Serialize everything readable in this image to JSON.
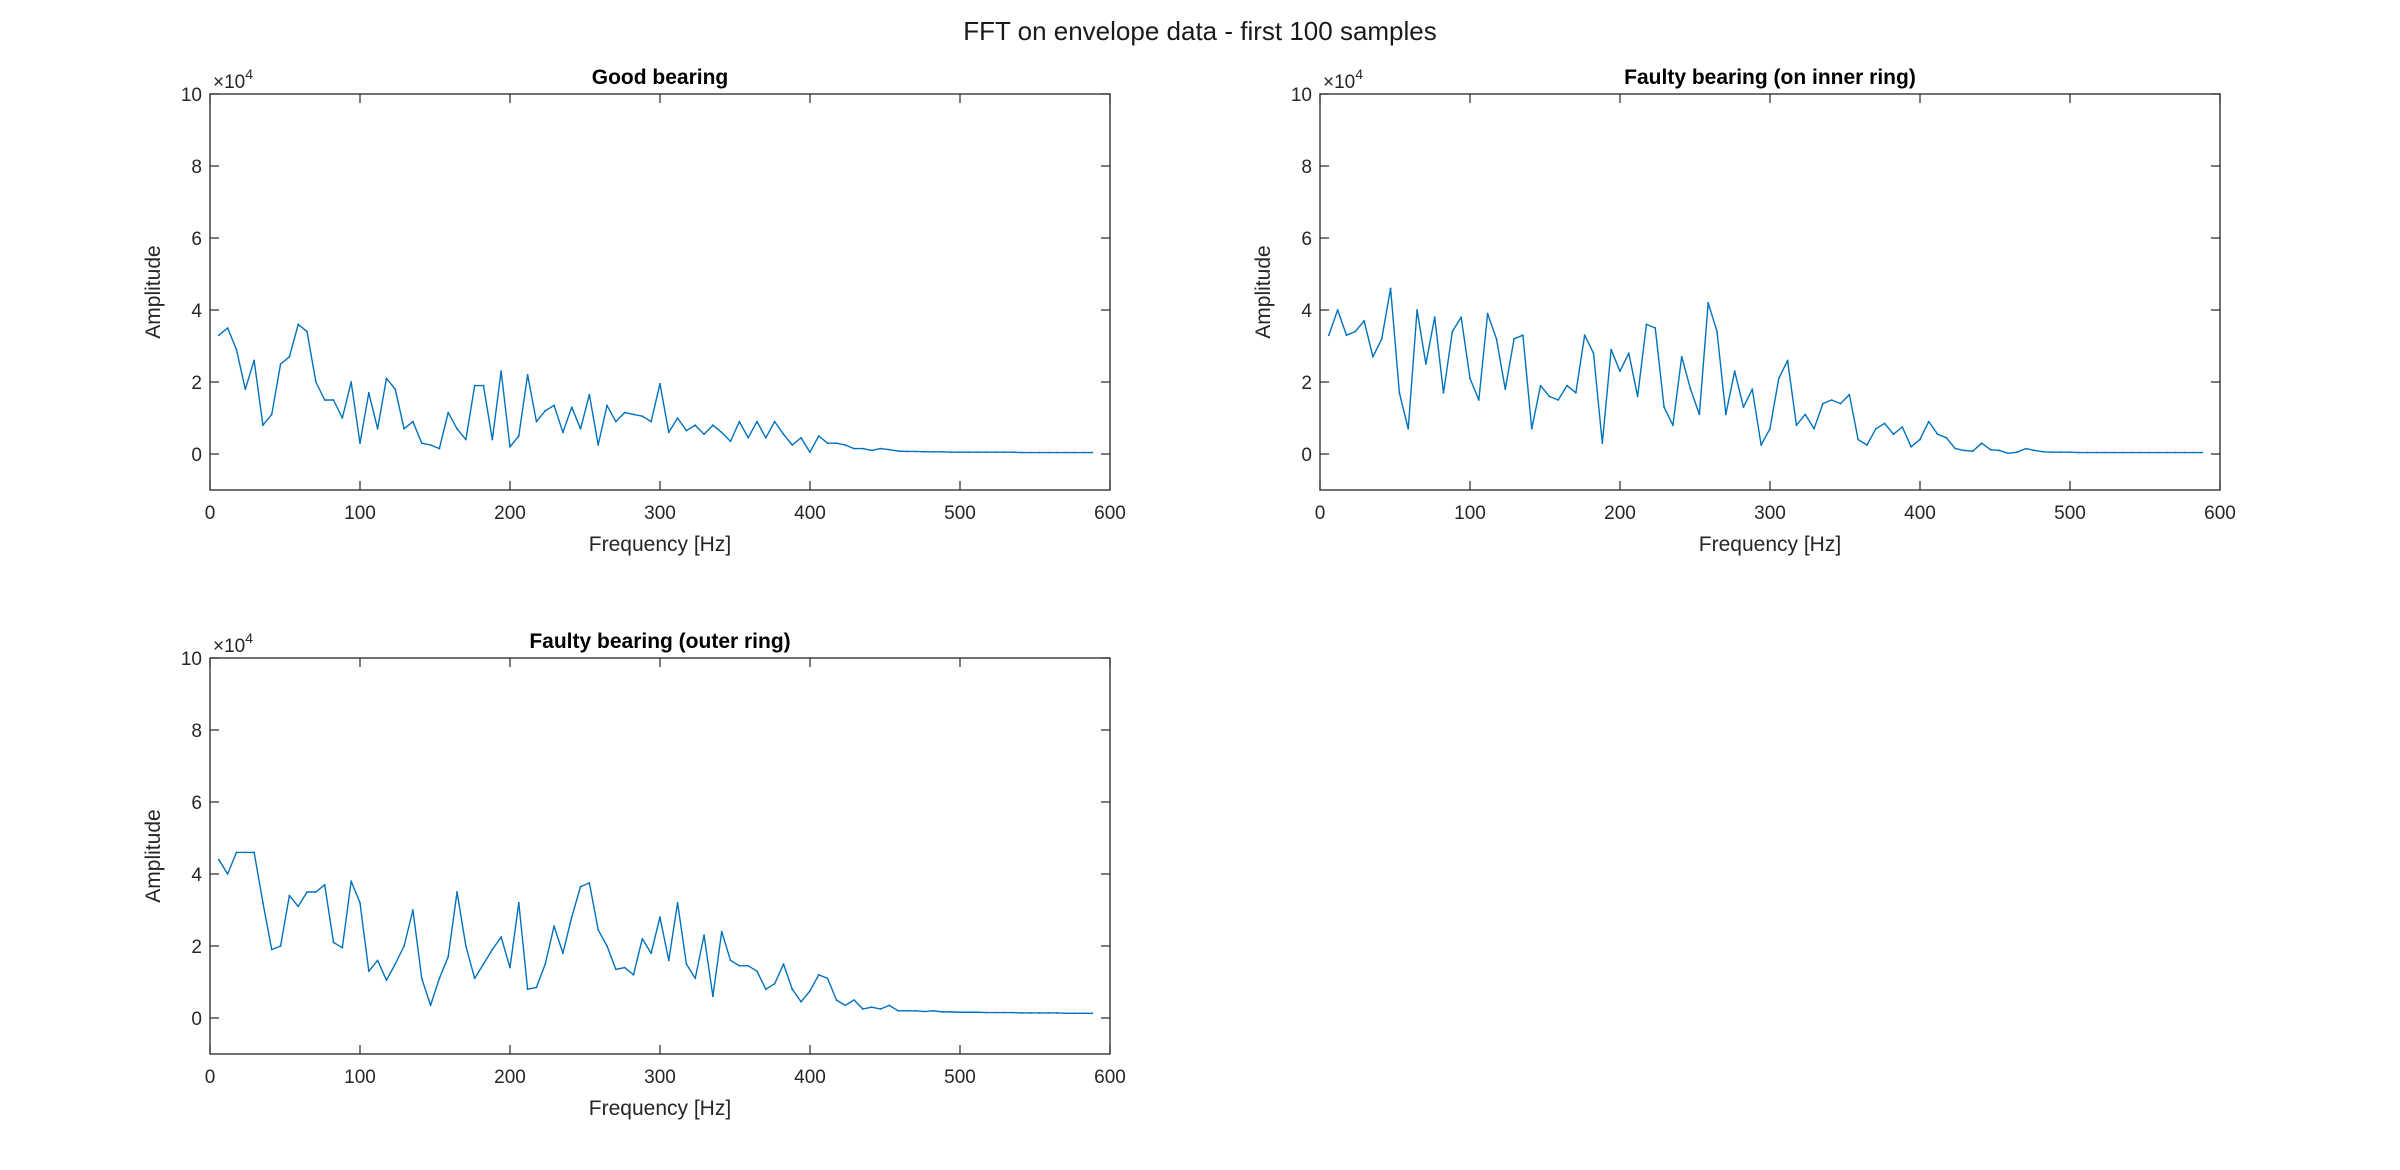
{
  "figure": {
    "suptitle": "FFT on envelope data - first 100 samples"
  },
  "style": {
    "line_color": "#0072BD",
    "axis_color": "#262626",
    "background": "#ffffff"
  },
  "chart_data": [
    {
      "type": "line",
      "title": "Good bearing",
      "xlabel": "Frequency [Hz]",
      "ylabel": "Amplitude",
      "exponent_label": "×10",
      "exponent": "4",
      "xlim": [
        0,
        600
      ],
      "ylim": [
        -1,
        10
      ],
      "xticks": [
        "0",
        "100",
        "200",
        "300",
        "400",
        "500",
        "600"
      ],
      "yticks": [
        "0",
        "2",
        "4",
        "6",
        "8",
        "10"
      ],
      "grid": false,
      "x": [
        5.88,
        11.76,
        17.64,
        23.53,
        29.41,
        35.29,
        41.17,
        47.05,
        52.93,
        58.82,
        64.7,
        70.58,
        76.46,
        82.34,
        88.22,
        94.11,
        99.99,
        105.87,
        111.75,
        117.63,
        123.51,
        129.4,
        135.28,
        141.16,
        147.04,
        152.92,
        158.8,
        164.69,
        170.57,
        176.45,
        182.33,
        188.21,
        194.09,
        199.98,
        205.86,
        211.74,
        217.62,
        223.5,
        229.38,
        235.27,
        241.15,
        247.03,
        252.91,
        258.79,
        264.67,
        270.56,
        276.44,
        282.32,
        288.2,
        294.08,
        299.96,
        305.85,
        311.73,
        317.61,
        323.49,
        329.37,
        335.25,
        341.14,
        347.02,
        352.9,
        358.78,
        364.66,
        370.54,
        376.43,
        382.31,
        388.19,
        394.07,
        399.95,
        405.83,
        411.72,
        417.6,
        423.48,
        429.36,
        435.24,
        441.12,
        447.01,
        452.89,
        458.77,
        464.65,
        470.53,
        476.41,
        482.3,
        488.18,
        494.06,
        499.94,
        505.82,
        511.7,
        517.59,
        523.47,
        529.35,
        535.23,
        541.11,
        546.99,
        552.88,
        558.76,
        564.64,
        570.52,
        576.4,
        582.28,
        588.17
      ],
      "series": [
        {
          "values": [
            3.3,
            3.5,
            2.9,
            1.8,
            2.6,
            0.8,
            1.1,
            2.5,
            2.7,
            3.6,
            3.4,
            2.0,
            1.5,
            1.5,
            1.0,
            2.0,
            0.3,
            1.7,
            0.7,
            2.1,
            1.8,
            0.7,
            0.9,
            0.3,
            0.25,
            0.15,
            1.15,
            0.7,
            0.4,
            1.9,
            1.9,
            0.4,
            2.3,
            0.2,
            0.5,
            2.2,
            0.9,
            1.2,
            1.35,
            0.6,
            1.3,
            0.7,
            1.65,
            0.25,
            1.35,
            0.9,
            1.15,
            1.1,
            1.05,
            0.9,
            1.95,
            0.6,
            1.0,
            0.65,
            0.8,
            0.55,
            0.8,
            0.6,
            0.35,
            0.9,
            0.45,
            0.9,
            0.45,
            0.9,
            0.55,
            0.25,
            0.45,
            0.05,
            0.5,
            0.3,
            0.3,
            0.25,
            0.15,
            0.15,
            0.1,
            0.15,
            0.12,
            0.08,
            0.07,
            0.07,
            0.06,
            0.06,
            0.06,
            0.05,
            0.05,
            0.05,
            0.05,
            0.05,
            0.05,
            0.05,
            0.05,
            0.04,
            0.04,
            0.04,
            0.04,
            0.04,
            0.04,
            0.04,
            0.04,
            0.04
          ]
        }
      ]
    },
    {
      "type": "line",
      "title": "Faulty bearing (on inner ring)",
      "xlabel": "Frequency [Hz]",
      "ylabel": "Amplitude",
      "exponent_label": "×10",
      "exponent": "4",
      "xlim": [
        0,
        600
      ],
      "ylim": [
        -1,
        10
      ],
      "xticks": [
        "0",
        "100",
        "200",
        "300",
        "400",
        "500",
        "600"
      ],
      "yticks": [
        "0",
        "2",
        "4",
        "6",
        "8",
        "10"
      ],
      "grid": false,
      "x": [
        5.88,
        11.76,
        17.64,
        23.53,
        29.41,
        35.29,
        41.17,
        47.05,
        52.93,
        58.82,
        64.7,
        70.58,
        76.46,
        82.34,
        88.22,
        94.11,
        99.99,
        105.87,
        111.75,
        117.63,
        123.51,
        129.4,
        135.28,
        141.16,
        147.04,
        152.92,
        158.8,
        164.69,
        170.57,
        176.45,
        182.33,
        188.21,
        194.09,
        199.98,
        205.86,
        211.74,
        217.62,
        223.5,
        229.38,
        235.27,
        241.15,
        247.03,
        252.91,
        258.79,
        264.67,
        270.56,
        276.44,
        282.32,
        288.2,
        294.08,
        299.96,
        305.85,
        311.73,
        317.61,
        323.49,
        329.37,
        335.25,
        341.14,
        347.02,
        352.9,
        358.78,
        364.66,
        370.54,
        376.43,
        382.31,
        388.19,
        394.07,
        399.95,
        405.83,
        411.72,
        417.6,
        423.48,
        429.36,
        435.24,
        441.12,
        447.01,
        452.89,
        458.77,
        464.65,
        470.53,
        476.41,
        482.3,
        488.18,
        494.06,
        499.94,
        505.82,
        511.7,
        517.59,
        523.47,
        529.35,
        535.23,
        541.11,
        546.99,
        552.88,
        558.76,
        564.64,
        570.52,
        576.4,
        582.28,
        588.17
      ],
      "series": [
        {
          "values": [
            3.3,
            4.0,
            3.3,
            3.4,
            3.7,
            2.7,
            3.2,
            4.6,
            1.7,
            0.7,
            4.0,
            2.5,
            3.8,
            1.7,
            3.4,
            3.8,
            2.1,
            1.5,
            3.9,
            3.2,
            1.8,
            3.2,
            3.3,
            0.7,
            1.9,
            1.6,
            1.5,
            1.9,
            1.7,
            3.3,
            2.8,
            0.3,
            2.9,
            2.3,
            2.8,
            1.6,
            3.6,
            3.5,
            1.3,
            0.8,
            2.7,
            1.8,
            1.1,
            4.2,
            3.4,
            1.1,
            2.3,
            1.3,
            1.8,
            0.25,
            0.7,
            2.1,
            2.6,
            0.8,
            1.1,
            0.7,
            1.4,
            1.5,
            1.4,
            1.65,
            0.4,
            0.25,
            0.7,
            0.85,
            0.55,
            0.75,
            0.2,
            0.4,
            0.9,
            0.55,
            0.45,
            0.15,
            0.1,
            0.08,
            0.3,
            0.12,
            0.1,
            0.02,
            0.05,
            0.15,
            0.1,
            0.06,
            0.05,
            0.05,
            0.05,
            0.04,
            0.04,
            0.04,
            0.04,
            0.04,
            0.04,
            0.04,
            0.04,
            0.04,
            0.04,
            0.04,
            0.04,
            0.04,
            0.04,
            0.04
          ]
        }
      ]
    },
    {
      "type": "line",
      "title": "Faulty bearing (outer ring)",
      "xlabel": "Frequency [Hz]",
      "ylabel": "Amplitude",
      "exponent_label": "×10",
      "exponent": "4",
      "xlim": [
        0,
        600
      ],
      "ylim": [
        -1,
        10
      ],
      "xticks": [
        "0",
        "100",
        "200",
        "300",
        "400",
        "500",
        "600"
      ],
      "yticks": [
        "0",
        "2",
        "4",
        "6",
        "8",
        "10"
      ],
      "grid": false,
      "x": [
        5.88,
        11.76,
        17.64,
        23.53,
        29.41,
        35.29,
        41.17,
        47.05,
        52.93,
        58.82,
        64.7,
        70.58,
        76.46,
        82.34,
        88.22,
        94.11,
        99.99,
        105.87,
        111.75,
        117.63,
        123.51,
        129.4,
        135.28,
        141.16,
        147.04,
        152.92,
        158.8,
        164.69,
        170.57,
        176.45,
        182.33,
        188.21,
        194.09,
        199.98,
        205.86,
        211.74,
        217.62,
        223.5,
        229.38,
        235.27,
        241.15,
        247.03,
        252.91,
        258.79,
        264.67,
        270.56,
        276.44,
        282.32,
        288.2,
        294.08,
        299.96,
        305.85,
        311.73,
        317.61,
        323.49,
        329.37,
        335.25,
        341.14,
        347.02,
        352.9,
        358.78,
        364.66,
        370.54,
        376.43,
        382.31,
        388.19,
        394.07,
        399.95,
        405.83,
        411.72,
        417.6,
        423.48,
        429.36,
        435.24,
        441.12,
        447.01,
        452.89,
        458.77,
        464.65,
        470.53,
        476.41,
        482.3,
        488.18,
        494.06,
        499.94,
        505.82,
        511.7,
        517.59,
        523.47,
        529.35,
        535.23,
        541.11,
        546.99,
        552.88,
        558.76,
        564.64,
        570.52,
        576.4,
        582.28,
        588.17
      ],
      "series": [
        {
          "values": [
            4.4,
            4.0,
            4.6,
            4.6,
            4.6,
            3.2,
            1.9,
            2.0,
            3.4,
            3.1,
            3.5,
            3.5,
            3.7,
            2.1,
            1.95,
            3.8,
            3.2,
            1.3,
            1.6,
            1.05,
            1.5,
            2.0,
            3.0,
            1.1,
            0.35,
            1.1,
            1.7,
            3.5,
            2.0,
            1.1,
            1.5,
            1.9,
            2.25,
            1.4,
            3.2,
            0.8,
            0.85,
            1.5,
            2.55,
            1.8,
            2.8,
            3.65,
            3.75,
            2.45,
            2.0,
            1.35,
            1.4,
            1.2,
            2.2,
            1.8,
            2.8,
            1.6,
            3.2,
            1.5,
            1.1,
            2.3,
            0.6,
            2.4,
            1.6,
            1.45,
            1.45,
            1.3,
            0.8,
            0.95,
            1.5,
            0.8,
            0.45,
            0.75,
            1.2,
            1.1,
            0.5,
            0.35,
            0.5,
            0.25,
            0.3,
            0.25,
            0.35,
            0.2,
            0.2,
            0.2,
            0.18,
            0.2,
            0.17,
            0.17,
            0.16,
            0.16,
            0.16,
            0.15,
            0.15,
            0.15,
            0.15,
            0.14,
            0.14,
            0.14,
            0.14,
            0.14,
            0.13,
            0.13,
            0.13,
            0.13
          ]
        }
      ]
    }
  ]
}
